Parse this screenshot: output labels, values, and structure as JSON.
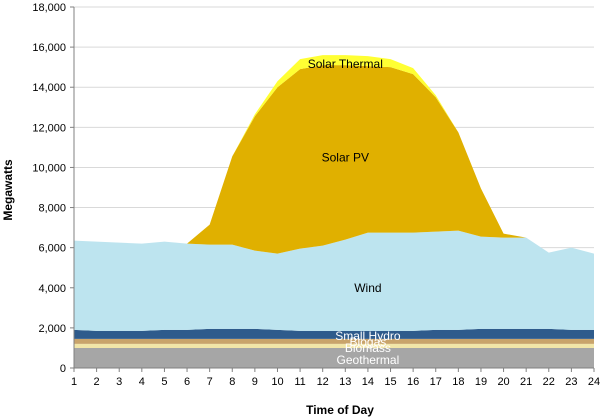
{
  "chart_data": {
    "type": "area",
    "stacked": true,
    "xlabel": "Time of Day",
    "ylabel": "Megawatts",
    "ylim": [
      0,
      18000
    ],
    "y_ticks": [
      0,
      2000,
      4000,
      6000,
      8000,
      10000,
      12000,
      14000,
      16000,
      18000
    ],
    "y_tick_labels": [
      "0",
      "2,000",
      "4,000",
      "6,000",
      "8,000",
      "10,000",
      "12,000",
      "14,000",
      "16,000",
      "18,000"
    ],
    "x": [
      1,
      2,
      3,
      4,
      5,
      6,
      7,
      8,
      9,
      10,
      11,
      12,
      13,
      14,
      15,
      16,
      17,
      18,
      19,
      20,
      21,
      22,
      23,
      24
    ],
    "x_tick_labels": [
      "1",
      "2",
      "3",
      "4",
      "5",
      "6",
      "7",
      "8",
      "9",
      "10",
      "11",
      "12",
      "13",
      "14",
      "15",
      "16",
      "17",
      "18",
      "19",
      "20",
      "21",
      "22",
      "23",
      "24"
    ],
    "grid": "horizontal",
    "series": [
      {
        "name": "Geothermal",
        "color": "#a6a6a6",
        "label_at": [
          14,
          400
        ],
        "label_style": "light",
        "values": [
          1000,
          1000,
          1000,
          1000,
          1000,
          1000,
          1000,
          1000,
          1000,
          1000,
          1000,
          1000,
          1000,
          1000,
          1000,
          1000,
          1000,
          1000,
          1000,
          1000,
          1000,
          1000,
          1000,
          1000
        ]
      },
      {
        "name": "Biomass",
        "color": "#f2e6a8",
        "label_at": [
          14,
          1000
        ],
        "label_style": "light",
        "values": [
          200,
          200,
          200,
          200,
          200,
          200,
          200,
          200,
          200,
          200,
          200,
          200,
          200,
          200,
          200,
          200,
          200,
          200,
          200,
          200,
          200,
          200,
          200,
          200
        ]
      },
      {
        "name": "Biogas",
        "color": "#c9a46b",
        "label_at": [
          14,
          1300
        ],
        "label_style": "light",
        "values": [
          250,
          250,
          250,
          250,
          250,
          250,
          250,
          250,
          250,
          250,
          250,
          250,
          250,
          250,
          250,
          250,
          250,
          250,
          250,
          250,
          250,
          250,
          250,
          250
        ]
      },
      {
        "name": "Small Hydro",
        "color": "#2e5b8c",
        "label_at": [
          14,
          1600
        ],
        "label_style": "light",
        "values": [
          450,
          400,
          400,
          400,
          450,
          450,
          500,
          500,
          500,
          450,
          400,
          400,
          400,
          400,
          400,
          400,
          450,
          450,
          500,
          500,
          500,
          500,
          450,
          450
        ]
      },
      {
        "name": "Wind",
        "color": "#bde4ef",
        "label_at": [
          14,
          4000
        ],
        "label_style": "dark",
        "values": [
          4450,
          4450,
          4400,
          4350,
          4400,
          4300,
          4200,
          4200,
          3900,
          3800,
          4100,
          4250,
          4550,
          4900,
          4900,
          4900,
          4900,
          4950,
          4600,
          4550,
          4550,
          3800,
          4100,
          3800
        ]
      },
      {
        "name": "Solar PV",
        "color": "#e0b000",
        "label_at": [
          13,
          10500
        ],
        "label_style": "dark",
        "values": [
          0,
          0,
          0,
          0,
          0,
          0,
          1000,
          4400,
          6700,
          8300,
          8950,
          9000,
          8700,
          8300,
          8250,
          7900,
          6700,
          4900,
          2400,
          200,
          0,
          0,
          0,
          0
        ]
      },
      {
        "name": "Solar Thermal",
        "color": "#ffff33",
        "label_at": [
          13,
          15150
        ],
        "label_style": "dark",
        "values": [
          0,
          0,
          0,
          0,
          0,
          0,
          0,
          0,
          100,
          300,
          500,
          500,
          500,
          500,
          400,
          300,
          100,
          0,
          0,
          0,
          0,
          0,
          0,
          0
        ]
      }
    ]
  }
}
